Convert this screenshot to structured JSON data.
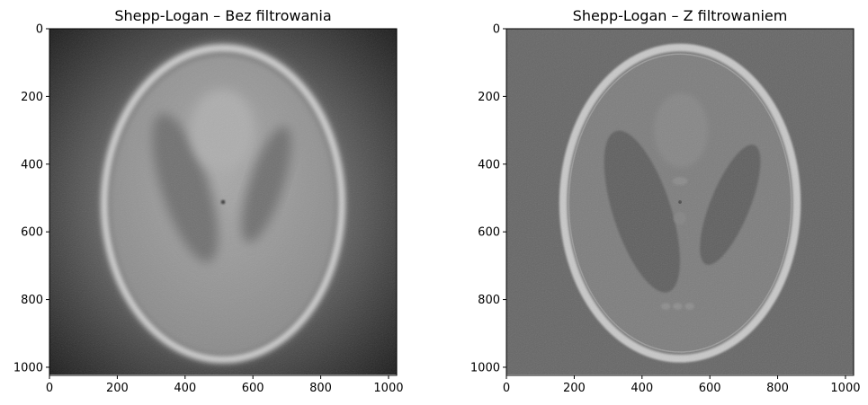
{
  "chart_data": [
    {
      "type": "heatmap",
      "title": "Shepp-Logan – Bez filtrowania",
      "image": "Shepp-Logan phantom, unfiltered back-projection (blurred)",
      "colormap": "gray",
      "xlim": [
        0,
        1024
      ],
      "ylim": [
        1024,
        0
      ],
      "xticks": [
        0,
        200,
        400,
        600,
        800,
        1000
      ],
      "yticks": [
        0,
        200,
        400,
        600,
        800,
        1000
      ],
      "colors": {
        "outer": "#1d1d1d",
        "mid": "#6a6a6a",
        "skull": "#d6d6d6",
        "brain": "#9a9a9a",
        "dark_ellipse": "#6f6f6f"
      }
    },
    {
      "type": "heatmap",
      "title": "Shepp-Logan – Z filtrowaniem",
      "image": "Shepp-Logan phantom, filtered back-projection (sharp)",
      "colormap": "gray",
      "xlim": [
        0,
        1024
      ],
      "ylim": [
        1024,
        0
      ],
      "xticks": [
        0,
        200,
        400,
        600,
        800,
        1000
      ],
      "yticks": [
        0,
        200,
        400,
        600,
        800,
        1000
      ],
      "colors": {
        "background": "#666666",
        "skull": "#c8c8c8",
        "brain": "#7d7d7d",
        "dark_ellipse": "#5f5f5f"
      }
    }
  ]
}
